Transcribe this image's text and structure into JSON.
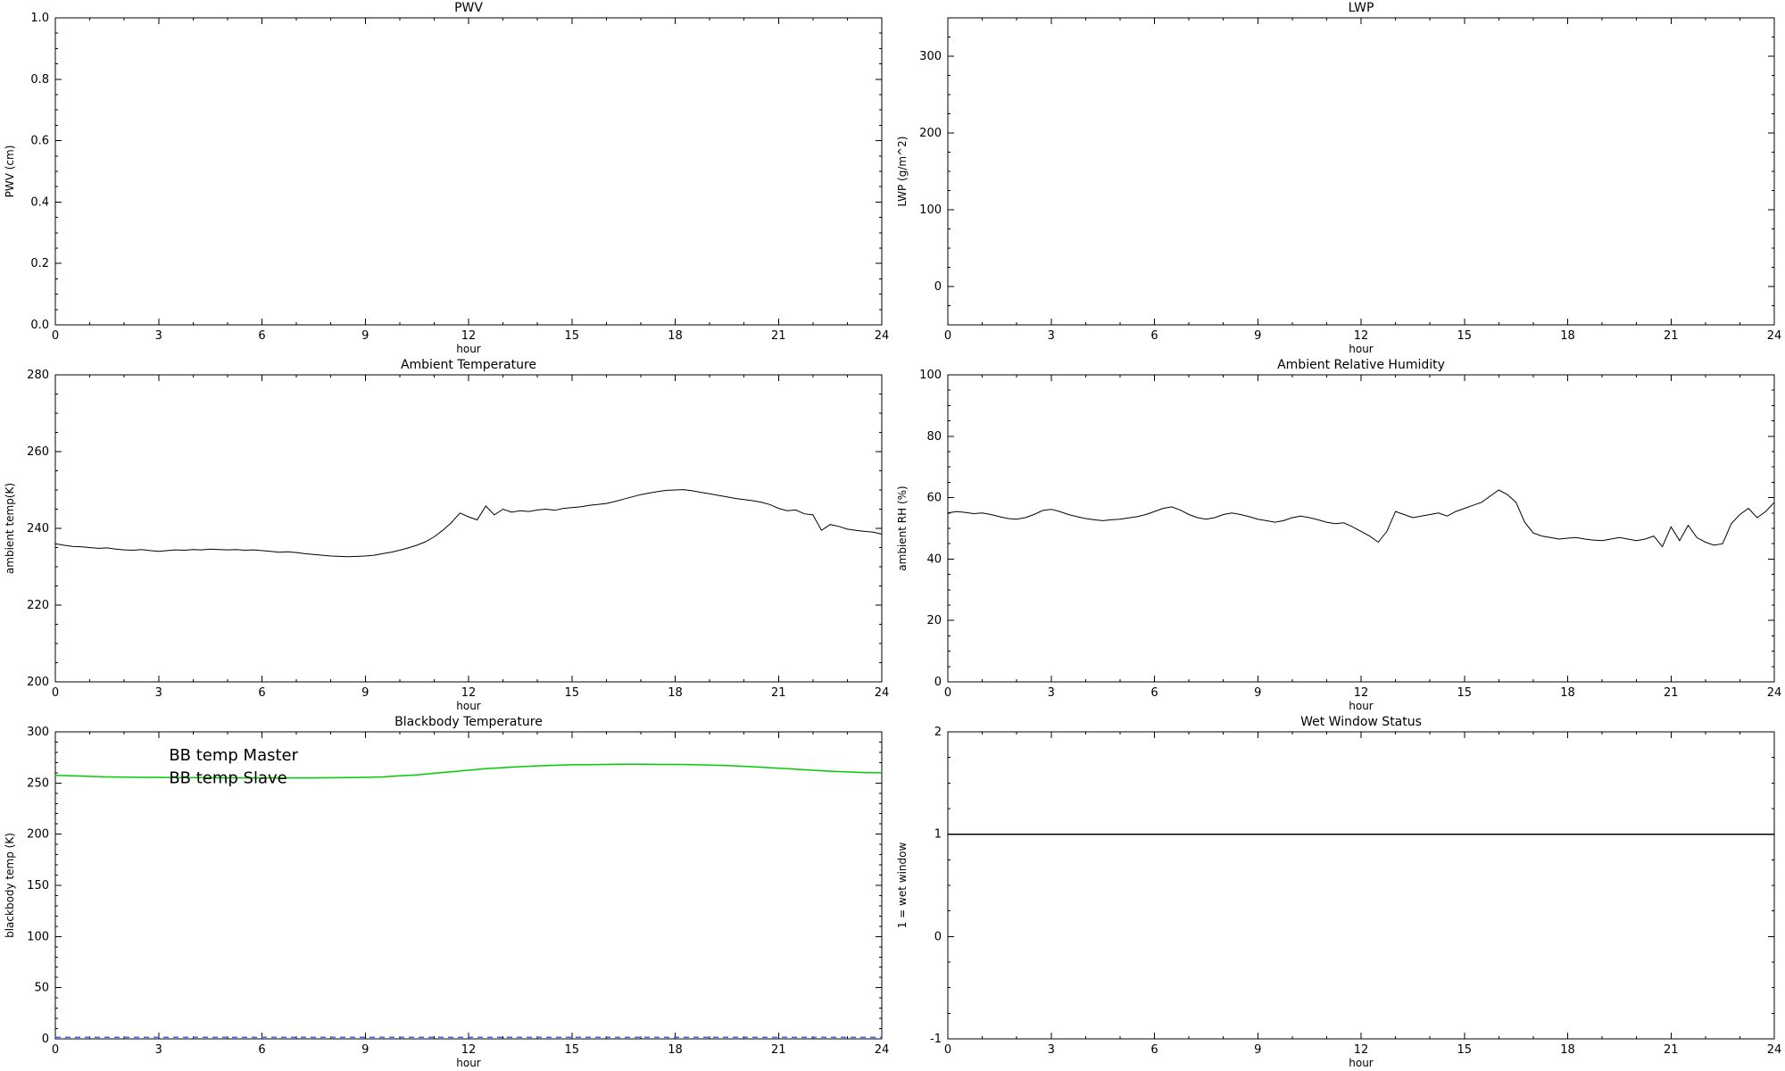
{
  "page": {
    "background": "#ffffff",
    "axis_color": "#000000"
  },
  "colors": {
    "data_black": "#000000",
    "bb_master_blue": "#3f64ff",
    "bb_slave_green": "#00cc00"
  },
  "chart_data": [
    {
      "id": "pwv",
      "type": "line",
      "title": "PWV",
      "xlabel": "hour",
      "ylabel": "PWV (cm)",
      "xlim": [
        0,
        24
      ],
      "ylim": [
        0,
        1
      ],
      "xticks": {
        "values": [
          0,
          3,
          6,
          9,
          12,
          15,
          18,
          21,
          24
        ],
        "labels": [
          "0",
          "3",
          "6",
          "9",
          "12",
          "15",
          "18",
          "21",
          "24"
        ]
      },
      "yticks": {
        "values": [
          0,
          0.2,
          0.4,
          0.6,
          0.8,
          1
        ],
        "labels": [
          "0.0",
          "0.2",
          "0.4",
          "0.6",
          "0.8",
          "1.0"
        ]
      },
      "xminor": 1,
      "yminor": 0.05,
      "grid": false,
      "series": [],
      "annotations": []
    },
    {
      "id": "lwp",
      "type": "line",
      "title": "LWP",
      "xlabel": "hour",
      "ylabel": "LWP (g/m^2)",
      "xlim": [
        0,
        24
      ],
      "ylim": [
        -50,
        350
      ],
      "xticks": {
        "values": [
          0,
          3,
          6,
          9,
          12,
          15,
          18,
          21,
          24
        ],
        "labels": [
          "0",
          "3",
          "6",
          "9",
          "12",
          "15",
          "18",
          "21",
          "24"
        ]
      },
      "yticks": {
        "values": [
          0,
          100,
          200,
          300
        ],
        "labels": [
          "0",
          "100",
          "200",
          "300"
        ]
      },
      "xminor": 1,
      "yminor": 25,
      "grid": false,
      "series": [],
      "annotations": []
    },
    {
      "id": "ambient-temperature",
      "type": "line",
      "title": "Ambient Temperature",
      "xlabel": "hour",
      "ylabel": "ambient temp(K)",
      "xlim": [
        0,
        24
      ],
      "ylim": [
        200,
        280
      ],
      "xticks": {
        "values": [
          0,
          3,
          6,
          9,
          12,
          15,
          18,
          21,
          24
        ],
        "labels": [
          "0",
          "3",
          "6",
          "9",
          "12",
          "15",
          "18",
          "21",
          "24"
        ]
      },
      "yticks": {
        "values": [
          200,
          220,
          240,
          260,
          280
        ],
        "labels": [
          "200",
          "220",
          "240",
          "260",
          "280"
        ]
      },
      "xminor": 1,
      "yminor": 5,
      "grid": false,
      "series": [
        {
          "name": "ambient-temp",
          "color": "#000000",
          "width": 1,
          "x0": 0,
          "dx": 0.25,
          "values": [
            236.0,
            235.6,
            235.3,
            235.2,
            235.0,
            234.8,
            234.9,
            234.6,
            234.4,
            234.3,
            234.5,
            234.2,
            234.0,
            234.2,
            234.4,
            234.3,
            234.5,
            234.4,
            234.6,
            234.5,
            234.4,
            234.5,
            234.3,
            234.4,
            234.2,
            234.0,
            233.8,
            233.9,
            233.7,
            233.4,
            233.2,
            233.0,
            232.8,
            232.7,
            232.6,
            232.7,
            232.8,
            233.0,
            233.4,
            233.8,
            234.3,
            234.9,
            235.6,
            236.5,
            237.8,
            239.5,
            241.5,
            244.0,
            243.0,
            242.2,
            245.8,
            243.5,
            245.0,
            244.2,
            244.6,
            244.4,
            244.8,
            245.0,
            244.7,
            245.2,
            245.4,
            245.6,
            246.0,
            246.2,
            246.5,
            247.0,
            247.6,
            248.2,
            248.8,
            249.2,
            249.6,
            249.9,
            250.0,
            250.1,
            249.8,
            249.4,
            249.0,
            248.6,
            248.2,
            247.8,
            247.5,
            247.2,
            246.8,
            246.2,
            245.2,
            244.6,
            244.8,
            243.8,
            243.5,
            239.5,
            241.0,
            240.5,
            239.8,
            239.5,
            239.2,
            239.0,
            238.5
          ]
        }
      ],
      "annotations": []
    },
    {
      "id": "ambient-relative-humidity",
      "type": "line",
      "title": "Ambient Relative Humidity",
      "xlabel": "hour",
      "ylabel": "ambient RH (%)",
      "xlim": [
        0,
        24
      ],
      "ylim": [
        0,
        100
      ],
      "xticks": {
        "values": [
          0,
          3,
          6,
          9,
          12,
          15,
          18,
          21,
          24
        ],
        "labels": [
          "0",
          "3",
          "6",
          "9",
          "12",
          "15",
          "18",
          "21",
          "24"
        ]
      },
      "yticks": {
        "values": [
          0,
          20,
          40,
          60,
          80,
          100
        ],
        "labels": [
          "0",
          "20",
          "40",
          "60",
          "80",
          "100"
        ]
      },
      "xminor": 1,
      "yminor": 5,
      "grid": false,
      "series": [
        {
          "name": "ambient-rh",
          "color": "#000000",
          "width": 1,
          "x0": 0,
          "dx": 0.25,
          "values": [
            55.0,
            55.5,
            55.2,
            54.8,
            55.0,
            54.5,
            53.8,
            53.2,
            53.0,
            53.5,
            54.5,
            55.8,
            56.2,
            55.5,
            54.5,
            53.8,
            53.2,
            52.8,
            52.5,
            52.8,
            53.0,
            53.4,
            53.8,
            54.5,
            55.5,
            56.5,
            57.0,
            56.0,
            54.5,
            53.5,
            53.0,
            53.5,
            54.5,
            55.0,
            54.5,
            53.8,
            53.0,
            52.5,
            52.0,
            52.5,
            53.5,
            54.0,
            53.5,
            52.8,
            52.0,
            51.5,
            51.8,
            50.5,
            49.0,
            47.5,
            45.5,
            49.0,
            55.5,
            54.5,
            53.5,
            54.0,
            54.5,
            55.0,
            54.0,
            55.5,
            56.5,
            57.5,
            58.5,
            60.5,
            62.5,
            61.0,
            58.5,
            52.0,
            48.5,
            47.5,
            47.0,
            46.5,
            46.8,
            47.0,
            46.5,
            46.2,
            46.0,
            46.5,
            47.0,
            46.5,
            46.0,
            46.5,
            47.5,
            44.0,
            50.5,
            46.0,
            51.0,
            47.0,
            45.5,
            44.5,
            45.0,
            51.5,
            54.5,
            56.5,
            53.5,
            55.5,
            58.5
          ]
        }
      ],
      "annotations": []
    },
    {
      "id": "blackbody-temperature",
      "type": "line",
      "title": "Blackbody Temperature",
      "xlabel": "hour",
      "ylabel": "blackbody temp (K)",
      "xlim": [
        0,
        24
      ],
      "ylim": [
        0,
        300
      ],
      "xticks": {
        "values": [
          0,
          3,
          6,
          9,
          12,
          15,
          18,
          21,
          24
        ],
        "labels": [
          "0",
          "3",
          "6",
          "9",
          "12",
          "15",
          "18",
          "21",
          "24"
        ]
      },
      "yticks": {
        "values": [
          0,
          50,
          100,
          150,
          200,
          250,
          300
        ],
        "labels": [
          "0",
          "50",
          "100",
          "150",
          "200",
          "250",
          "300"
        ]
      },
      "xminor": 1,
      "yminor": 10,
      "grid": false,
      "series": [
        {
          "name": "bb-temp-slave",
          "color": "#00cc00",
          "width": 1.5,
          "x0": 0,
          "dx": 0.5,
          "values": [
            257.5,
            257.0,
            256.5,
            256.0,
            255.8,
            255.5,
            255.5,
            255.3,
            255.2,
            255.2,
            255.0,
            255.0,
            255.0,
            255.0,
            255.0,
            255.0,
            255.2,
            255.3,
            255.5,
            256.0,
            257.0,
            258.0,
            259.5,
            261.0,
            262.5,
            264.0,
            265.0,
            266.0,
            266.8,
            267.3,
            267.8,
            268.0,
            268.2,
            268.3,
            268.3,
            268.2,
            268.2,
            268.0,
            267.5,
            267.0,
            266.3,
            265.5,
            264.5,
            263.5,
            262.5,
            261.5,
            260.8,
            260.2,
            260.0
          ]
        },
        {
          "name": "bb-temp-master",
          "color": "#3f64ff",
          "width": 1.5,
          "dash": "6 5",
          "x0": 0,
          "dx": 24,
          "values": [
            1.5,
            1.5
          ]
        }
      ],
      "annotations": [
        {
          "name": "legend-bb-temp-master",
          "text": "BB temp Master",
          "color": "#3f64ff",
          "x": 3.3,
          "y": 272
        },
        {
          "name": "legend-bb-temp-slave",
          "text": "BB temp Slave",
          "color": "#00cc00",
          "x": 3.3,
          "y": 250
        }
      ]
    },
    {
      "id": "wet-window-status",
      "type": "line",
      "title": "Wet Window Status",
      "xlabel": "hour",
      "ylabel": "1 = wet window",
      "xlim": [
        0,
        24
      ],
      "ylim": [
        -1,
        2
      ],
      "xticks": {
        "values": [
          0,
          3,
          6,
          9,
          12,
          15,
          18,
          21,
          24
        ],
        "labels": [
          "0",
          "3",
          "6",
          "9",
          "12",
          "15",
          "18",
          "21",
          "24"
        ]
      },
      "yticks": {
        "values": [
          -1,
          0,
          1,
          2
        ],
        "labels": [
          "-1",
          "0",
          "1",
          "2"
        ]
      },
      "xminor": 1,
      "yminor": 0.25,
      "grid": false,
      "series": [
        {
          "name": "wet-window-flag",
          "color": "#000000",
          "width": 1.5,
          "x0": 0,
          "dx": 24,
          "values": [
            1,
            1
          ]
        }
      ],
      "annotations": []
    }
  ]
}
